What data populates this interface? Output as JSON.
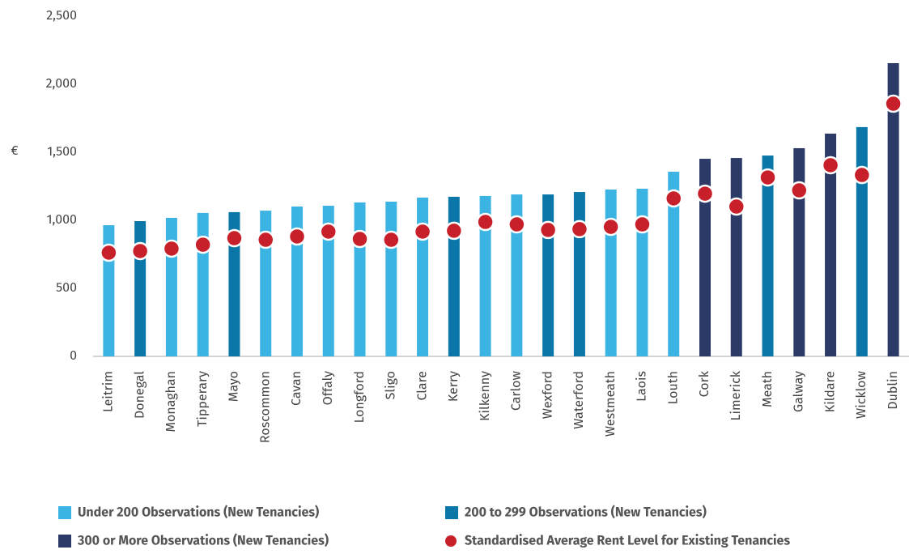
{
  "chart_data": {
    "type": "bar",
    "y_label": "€",
    "categories": [
      "Leitrim",
      "Donegal",
      "Monaghan",
      "Tipperary",
      "Mayo",
      "Roscommon",
      "Cavan",
      "Offaly",
      "Longford",
      "Sligo",
      "Clare",
      "Kerry",
      "Kilkenny",
      "Carlow",
      "Wexford",
      "Waterford",
      "Westmeath",
      "Laois",
      "Louth",
      "Cork",
      "Limerick",
      "Meath",
      "Galway",
      "Kildare",
      "Wicklow",
      "Dublin"
    ],
    "series": [
      {
        "name": "Under 200 Observations (New Tenancies)",
        "type": "bar",
        "color": "#3bb3e3",
        "values": [
          964,
          null,
          1018,
          1054,
          null,
          1071,
          1101,
          1107,
          1131,
          1137,
          1167,
          null,
          1179,
          1190,
          null,
          null,
          1226,
          1232,
          1357,
          null,
          null,
          null,
          null,
          null,
          null,
          null
        ]
      },
      {
        "name": "200 to 299 Observations (New Tenancies)",
        "type": "bar",
        "color": "#0a77a8",
        "values": [
          null,
          994,
          null,
          null,
          1060,
          null,
          null,
          null,
          null,
          null,
          null,
          1173,
          null,
          null,
          1190,
          1208,
          null,
          null,
          null,
          null,
          null,
          1476,
          null,
          null,
          1685,
          null
        ]
      },
      {
        "name": "300 or More Observations (New Tenancies)",
        "type": "bar",
        "color": "#2b3a67",
        "values": [
          null,
          null,
          null,
          null,
          null,
          null,
          null,
          null,
          null,
          null,
          null,
          null,
          null,
          null,
          null,
          null,
          null,
          null,
          null,
          1452,
          1458,
          null,
          1530,
          1637,
          null,
          2155
        ]
      },
      {
        "name": "Standardised Average Rent Level for Existing Tenancies",
        "type": "dot",
        "color": "#c8202a",
        "values": [
          762,
          774,
          792,
          821,
          869,
          857,
          881,
          917,
          863,
          857,
          917,
          923,
          988,
          970,
          929,
          935,
          952,
          970,
          1161,
          1196,
          1101,
          1315,
          1220,
          1405,
          1333,
          1857
        ]
      }
    ],
    "ylim": [
      0,
      2500
    ],
    "yticks": [
      0,
      500,
      {
        "value": 1000,
        "label": "1,000"
      },
      {
        "value": 1500,
        "label": "1,500"
      },
      {
        "value": 2000,
        "label": "2,000"
      },
      {
        "value": 2500,
        "label": "2,500"
      }
    ],
    "grid": false
  }
}
